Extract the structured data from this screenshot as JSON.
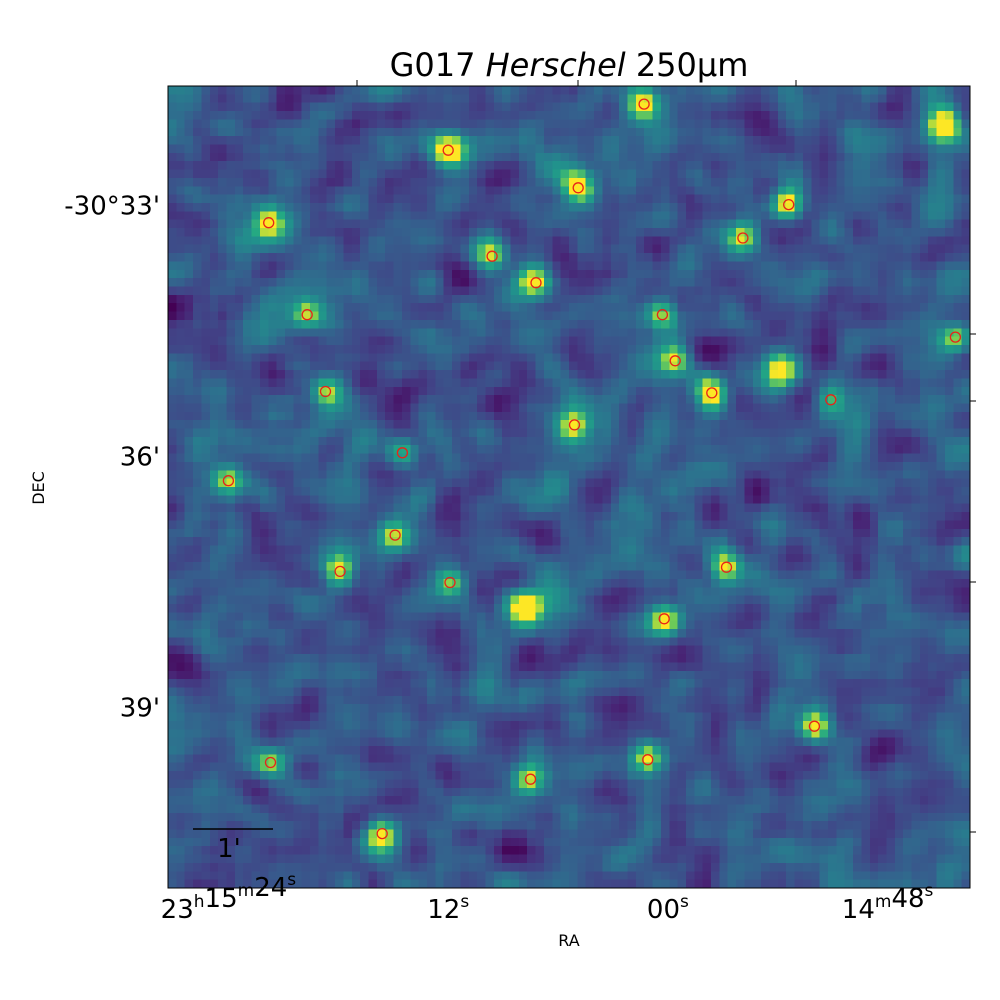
{
  "chart_data": {
    "type": "heatmap",
    "title": "G017 Herschel 250μm",
    "title_parts": {
      "prefix": "G017 ",
      "italic": "Herschel",
      "suffix": " 250μm"
    },
    "xlabel": "RA",
    "ylabel": "DEC",
    "colormap": "viridis",
    "grid": false,
    "x_ticks": [
      {
        "hours": "23",
        "minutes": "15",
        "seconds": "24",
        "label": "23h15m24s"
      },
      {
        "seconds": "12",
        "label": "12s"
      },
      {
        "seconds": "00",
        "label": "00s"
      },
      {
        "minutes": "14",
        "seconds": "48",
        "label": "14m48s"
      }
    ],
    "x_tick_values": [
      "23:15:24",
      "23:15:12",
      "23:15:00",
      "23:14:48"
    ],
    "y_ticks": [
      "-30°33'",
      "36'",
      "39'"
    ],
    "y_tick_values": [
      "-30:33",
      "-30:36",
      "-30:39"
    ],
    "ra_range": [
      "23:15:27.3",
      "23:14:43.5"
    ],
    "dec_range": [
      "-30:31:35",
      "-30:41:10"
    ],
    "scale_bar": {
      "label": "1'",
      "length_arcmin": 1
    },
    "marker_style": {
      "shape": "circle",
      "edge_color": "#e8231a",
      "face": "none"
    },
    "sources": [
      {
        "ra": "23:15:01.3",
        "dec": "-30:31:48"
      },
      {
        "ra": "23:15:12.0",
        "dec": "-30:32:21"
      },
      {
        "ra": "23:15:04.9",
        "dec": "-30:32:48"
      },
      {
        "ra": "23:15:21.8",
        "dec": "-30:33:13"
      },
      {
        "ra": "23:14:53.4",
        "dec": "-30:33:00"
      },
      {
        "ra": "23:14:55.9",
        "dec": "-30:33:24"
      },
      {
        "ra": "23:15:09.6",
        "dec": "-30:33:37"
      },
      {
        "ra": "23:15:07.2",
        "dec": "-30:33:56"
      },
      {
        "ra": "23:15:19.7",
        "dec": "-30:34:19"
      },
      {
        "ra": "23:15:00.3",
        "dec": "-30:34:19"
      },
      {
        "ra": "23:14:44.3",
        "dec": "-30:34:35"
      },
      {
        "ra": "23:14:59.6",
        "dec": "-30:34:52"
      },
      {
        "ra": "23:15:18.7",
        "dec": "-30:35:14"
      },
      {
        "ra": "23:14:57.6",
        "dec": "-30:35:15"
      },
      {
        "ra": "23:14:51.1",
        "dec": "-30:35:20"
      },
      {
        "ra": "23:15:05.1",
        "dec": "-30:35:38"
      },
      {
        "ra": "23:15:14.5",
        "dec": "-30:35:58"
      },
      {
        "ra": "23:15:24.0",
        "dec": "-30:36:18"
      },
      {
        "ra": "23:15:14.9",
        "dec": "-30:36:57"
      },
      {
        "ra": "23:14:56.8",
        "dec": "-30:37:20"
      },
      {
        "ra": "23:15:17.9",
        "dec": "-30:37:23"
      },
      {
        "ra": "23:15:11.9",
        "dec": "-30:37:31"
      },
      {
        "ra": "23:15:00.2",
        "dec": "-30:37:57"
      },
      {
        "ra": "23:14:52.0",
        "dec": "-30:39:14"
      },
      {
        "ra": "23:15:21.7",
        "dec": "-30:39:40"
      },
      {
        "ra": "23:15:01.1",
        "dec": "-30:39:38"
      },
      {
        "ra": "23:15:07.5",
        "dec": "-30:39:52"
      },
      {
        "ra": "23:15:15.6",
        "dec": "-30:40:31"
      }
    ],
    "bright_features": [
      {
        "ra": "23:14:44.9",
        "dec": "-30:32:02",
        "level": 0.85
      },
      {
        "ra": "23:15:07.9",
        "dec": "-30:37:50",
        "level": 0.9
      },
      {
        "ra": "23:14:53.9",
        "dec": "-30:34:57",
        "level": 0.95
      }
    ]
  }
}
